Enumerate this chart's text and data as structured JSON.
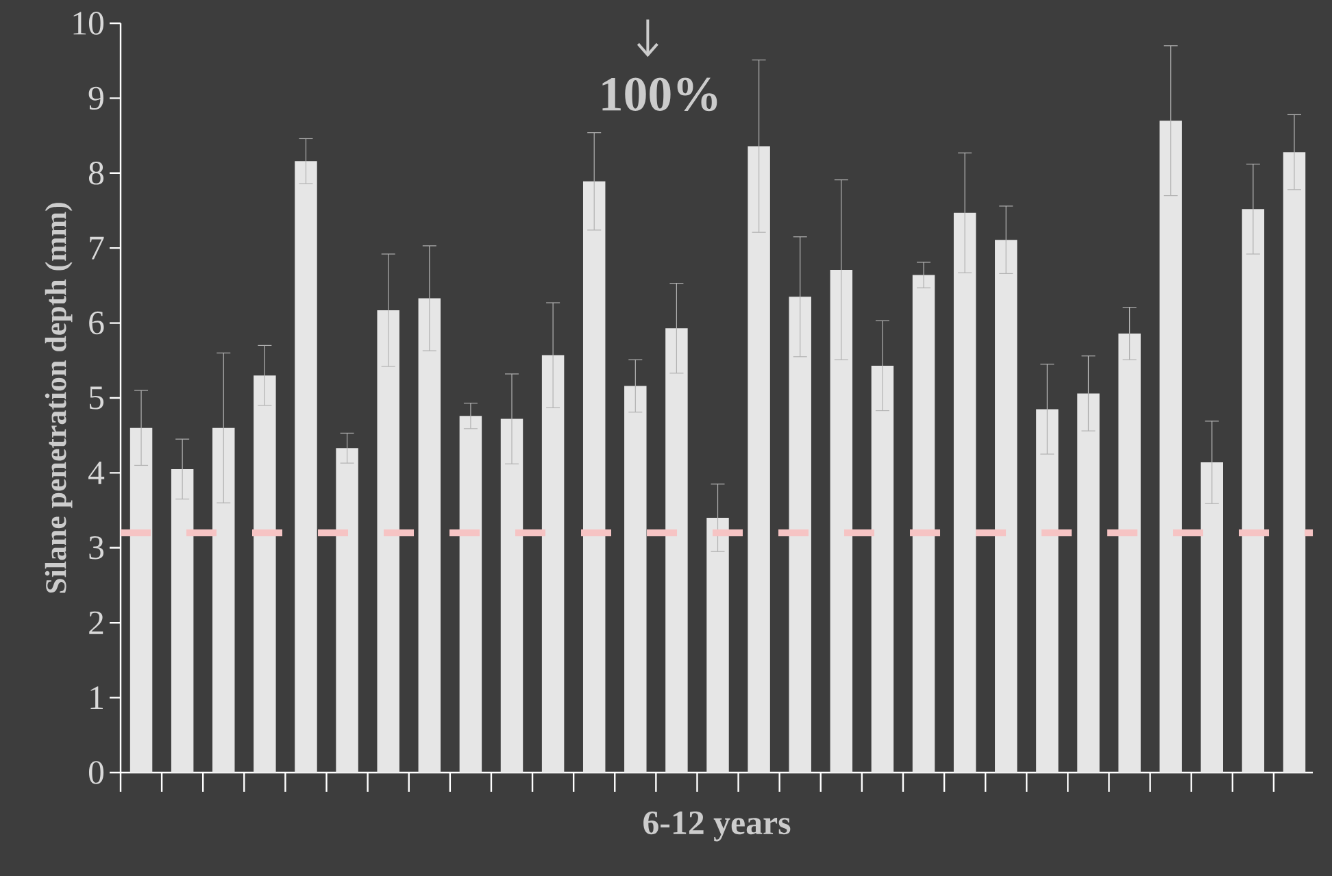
{
  "chart_data": {
    "type": "bar",
    "xlabel": "6-12 years",
    "ylabel": "Silane penetration depth (mm)",
    "categories": [
      null,
      null,
      null,
      null,
      null,
      null,
      null,
      null,
      null,
      null,
      null,
      null,
      null,
      null,
      null,
      null,
      null,
      null,
      null,
      null,
      null,
      null,
      null,
      null,
      null,
      null,
      null,
      null,
      null
    ],
    "values": [
      4.6,
      4.05,
      4.6,
      5.3,
      8.16,
      4.33,
      6.17,
      6.33,
      4.76,
      4.72,
      5.57,
      7.89,
      5.16,
      5.93,
      3.4,
      8.36,
      6.35,
      6.71,
      5.43,
      6.64,
      7.47,
      7.11,
      4.85,
      5.06,
      5.86,
      8.7,
      4.14,
      7.52,
      8.28
    ],
    "errors": [
      0.5,
      0.4,
      1.0,
      0.4,
      0.3,
      0.2,
      0.75,
      0.7,
      0.17,
      0.6,
      0.7,
      0.65,
      0.35,
      0.6,
      0.45,
      1.15,
      0.8,
      1.2,
      0.6,
      0.17,
      0.8,
      0.45,
      0.6,
      0.5,
      0.35,
      1.0,
      0.55,
      0.6,
      0.5
    ],
    "color": "#e6e6e6",
    "ylim": [
      0,
      10
    ],
    "yticks": [
      0,
      1,
      2,
      3,
      4,
      5,
      6,
      7,
      8,
      9,
      10
    ],
    "ref_lines": [
      {
        "axis": "y",
        "value": 3.2,
        "color": "#f6c4c4",
        "line_style": "dashed"
      }
    ],
    "annotations": [
      "100%"
    ]
  }
}
